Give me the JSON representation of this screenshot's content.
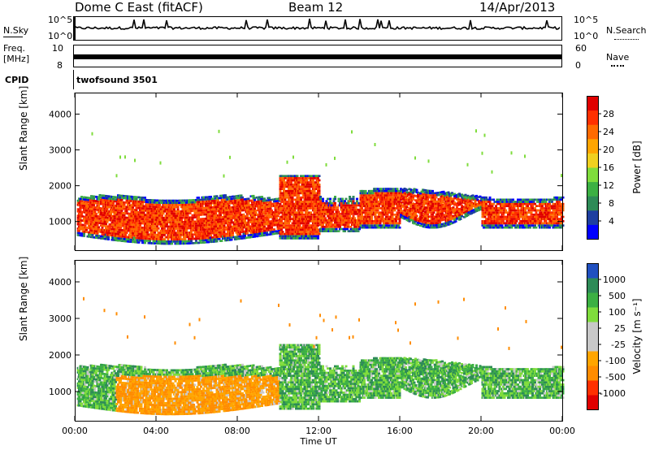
{
  "header": {
    "radar": "Dome C East (fitACF)",
    "beam": "Beam 12",
    "date": "14/Apr/2013"
  },
  "nsky_panel": {
    "label": "N.Sky",
    "left_ticks": [
      "10^5",
      "10^0"
    ],
    "right_ticks": [
      "10^5",
      "10^0"
    ],
    "right_label": "N.Search"
  },
  "freq_panel": {
    "label_line1": "Freq.",
    "label_line2": "[MHz]",
    "left_ticks": [
      "10",
      "8"
    ],
    "right_ticks": [
      "60",
      "0"
    ],
    "right_label": "Nave"
  },
  "cpid": {
    "label": "CPID",
    "value": "twofsound 3501"
  },
  "colors": {
    "power_scale": [
      "#0000ff",
      "#1e3fa0",
      "#2e8b57",
      "#3cb043",
      "#7fdc3c",
      "#f0d020",
      "#ffa500",
      "#ff6a00",
      "#ff3000",
      "#e00000"
    ],
    "velocity_scale": [
      "#e00000",
      "#ff3000",
      "#ff8c00",
      "#ffa500",
      "#c8c8c8",
      "#c8c8c8",
      "#7fdc3c",
      "#3cb043",
      "#2e8b57",
      "#2050c0"
    ]
  },
  "chart_data": [
    {
      "type": "heatmap",
      "name_panel": "power",
      "ylabel": "Slant Range [km]",
      "y_ticks": [
        "1000",
        "2000",
        "3000",
        "4000"
      ],
      "ylim": [
        200,
        4600
      ],
      "xlim": [
        0,
        24
      ],
      "colorbar": {
        "label": "Power [dB]",
        "ticks": [
          "4",
          "8",
          "12",
          "16",
          "20",
          "24",
          "28"
        ],
        "range": [
          0,
          32
        ]
      }
    },
    {
      "type": "heatmap",
      "name_panel": "velocity",
      "ylabel": "Slant Range [km]",
      "y_ticks": [
        "1000",
        "2000",
        "3000",
        "4000"
      ],
      "ylim": [
        200,
        4600
      ],
      "xlim": [
        0,
        24
      ],
      "xlabel": "Time UT",
      "x_ticks": [
        "00:00",
        "04:00",
        "08:00",
        "12:00",
        "16:00",
        "20:00",
        "00:00"
      ],
      "colorbar": {
        "label": "Velocity [m s⁻¹]",
        "ticks": [
          "1000",
          "500",
          "100",
          "25",
          "-25",
          "-100",
          "-500",
          "-1000"
        ]
      }
    }
  ]
}
